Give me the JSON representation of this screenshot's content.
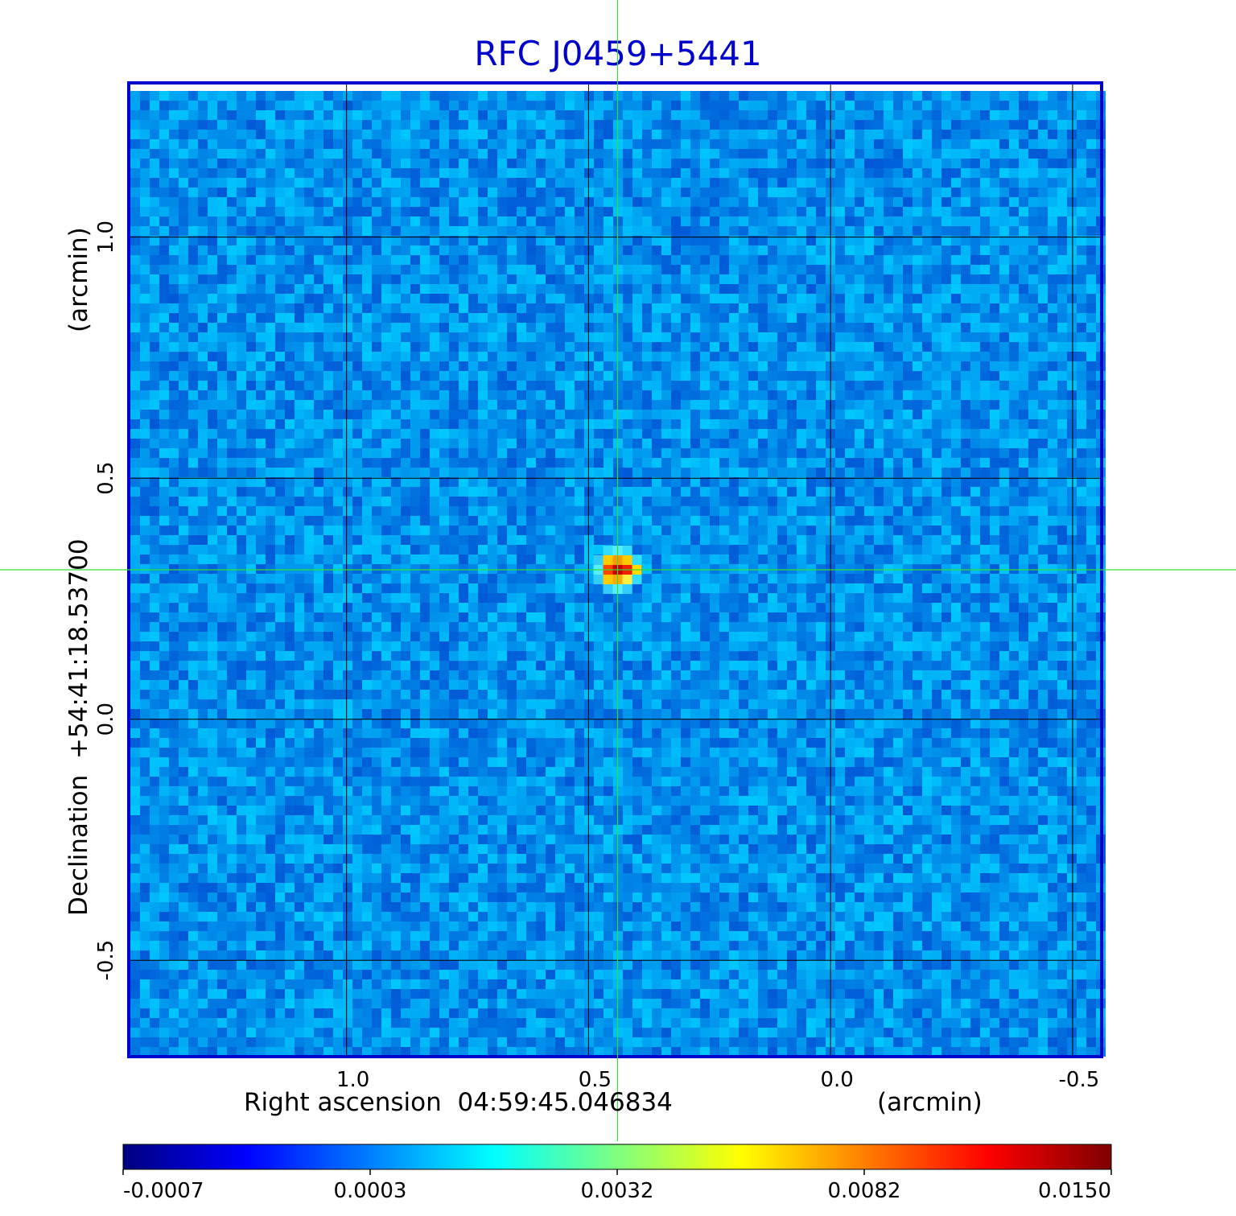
{
  "chart_data": {
    "type": "heatmap",
    "title": "RFC J0459+5441",
    "xlabel": "Right ascension  04:59:45.046834",
    "xunit": "(arcmin)",
    "ylabel": "Declination  +54:41:18.53700",
    "yunit": "(arcmin)",
    "x_ticks": [
      "1.0",
      "0.5",
      "0.0",
      "-0.5"
    ],
    "x_tick_values": [
      1.0,
      0.5,
      0.0,
      -0.5
    ],
    "y_ticks": [
      "1.0",
      "0.5",
      "0.0",
      "-0.5"
    ],
    "y_tick_values": [
      1.0,
      0.5,
      0.0,
      -0.5
    ],
    "xlim": [
      1.45,
      -0.56
    ],
    "ylim": [
      -0.7,
      1.32
    ],
    "grid": true,
    "crosshair": {
      "x": 0.44,
      "y": 0.31
    },
    "source": {
      "x": 0.44,
      "y": 0.31,
      "peak": 0.015
    },
    "colorbar": {
      "tick_labels": [
        "-0.0007",
        "0.0003",
        "0.0032",
        "0.0082",
        "0.0150"
      ],
      "range": [
        -0.0007,
        0.015
      ]
    }
  },
  "colors": {
    "title": "#0000cc",
    "frame": "#0000cc",
    "grid": "#000000",
    "crosshair": "#33dd33",
    "colormap": [
      "#00007f",
      "#0000ff",
      "#007fff",
      "#00ffff",
      "#7fff7f",
      "#ffff00",
      "#ff7f00",
      "#ff0000",
      "#7f0000"
    ]
  }
}
